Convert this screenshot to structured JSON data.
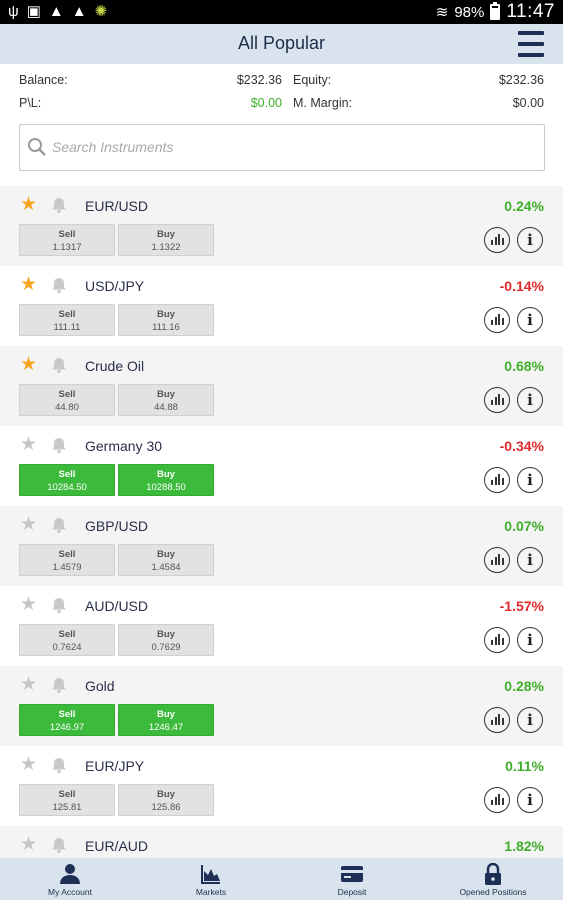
{
  "status_bar": {
    "battery": "98%",
    "time": "11:47"
  },
  "header": {
    "title": "All Popular"
  },
  "account": {
    "balance_label": "Balance:",
    "balance_value": "$232.36",
    "equity_label": "Equity:",
    "equity_value": "$232.36",
    "pl_label": "P\\L:",
    "pl_value": "$0.00",
    "margin_label": "M. Margin:",
    "margin_value": "$0.00"
  },
  "search": {
    "placeholder": "Search Instruments"
  },
  "instruments": [
    {
      "name": "EUR/USD",
      "change": "0.24%",
      "sell_label": "Sell",
      "sell": "1.1317",
      "buy_label": "Buy",
      "buy": "1.1322"
    },
    {
      "name": "USD/JPY",
      "change": "-0.14%",
      "sell_label": "Sell",
      "sell": "111.11",
      "buy_label": "Buy",
      "buy": "111.16"
    },
    {
      "name": "Crude Oil",
      "change": "0.68%",
      "sell_label": "Sell",
      "sell": "44.80",
      "buy_label": "Buy",
      "buy": "44.88"
    },
    {
      "name": "Germany 30",
      "change": "-0.34%",
      "sell_label": "Sell",
      "sell": "10284.50",
      "buy_label": "Buy",
      "buy": "10288.50"
    },
    {
      "name": "GBP/USD",
      "change": "0.07%",
      "sell_label": "Sell",
      "sell": "1.4579",
      "buy_label": "Buy",
      "buy": "1.4584"
    },
    {
      "name": "AUD/USD",
      "change": "-1.57%",
      "sell_label": "Sell",
      "sell": "0.7624",
      "buy_label": "Buy",
      "buy": "0.7629"
    },
    {
      "name": "Gold",
      "change": "0.28%",
      "sell_label": "Sell",
      "sell": "1246.97",
      "buy_label": "Buy",
      "buy": "1246.47"
    },
    {
      "name": "EUR/JPY",
      "change": "0.11%",
      "sell_label": "Sell",
      "sell": "125.81",
      "buy_label": "Buy",
      "buy": "125.86"
    },
    {
      "name": "EUR/AUD",
      "change": "1.82%"
    }
  ],
  "bottom_nav": {
    "account": "My Account",
    "markets": "Markets",
    "deposit": "Deposit",
    "positions": "Opened Positions"
  },
  "colors": {
    "positive": "#3fae2a",
    "negative": "#e02a2a",
    "favorite_star": "#f5a623",
    "active_button": "#3cba3c",
    "bar": "#d9e3ee"
  }
}
